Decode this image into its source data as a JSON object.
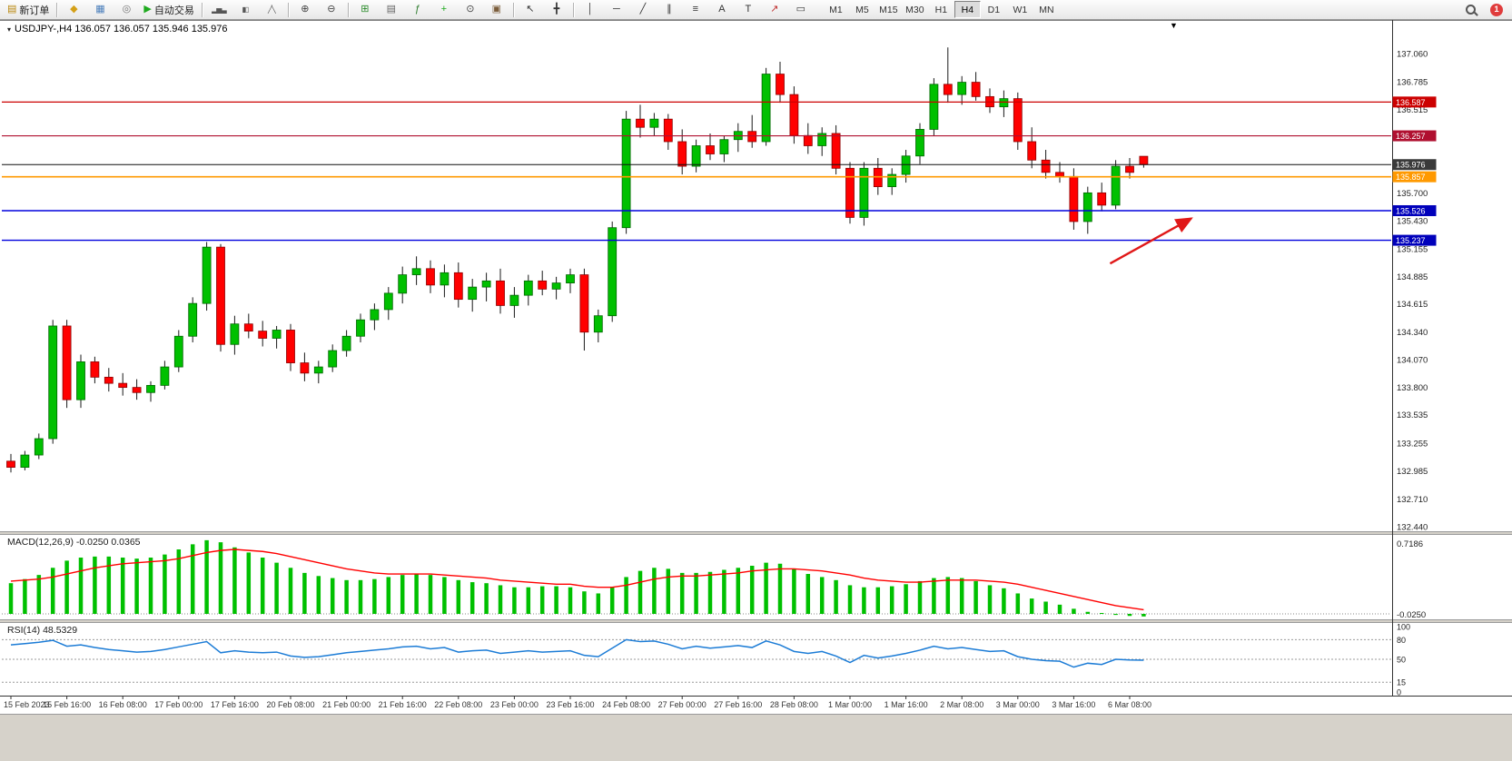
{
  "toolbar": {
    "badge": "1",
    "active_timeframe": "H4",
    "timeframes": [
      "M1",
      "M5",
      "M15",
      "M30",
      "H1",
      "H4",
      "D1",
      "W1",
      "MN"
    ],
    "left_buttons": [
      {
        "name": "new-order-button",
        "icon": "new-order-icon",
        "glyph": "▤",
        "glyph_color": "#b8860b",
        "label": "新订单"
      },
      {
        "sep": true
      },
      {
        "name": "symbols-button",
        "icon": "symbols-icon",
        "glyph": "◆",
        "glyph_color": "#d4a017"
      },
      {
        "name": "market-watch-button",
        "icon": "market-watch-icon",
        "glyph": "▦",
        "glyph_color": "#4a7ebb"
      },
      {
        "name": "signals-button",
        "icon": "signals-icon",
        "glyph": "◎",
        "glyph_color": "#777777"
      },
      {
        "name": "auto-trading-button",
        "icon": "play-icon",
        "glyph": "▶",
        "glyph_color": "#1faa1f",
        "label": "自动交易"
      },
      {
        "sep": true
      },
      {
        "name": "bar-chart-button",
        "icon": "bar-chart-icon",
        "glyph": "▂▅▃",
        "glyph_color": "#555555",
        "small": true
      },
      {
        "name": "candlestick-chart-button",
        "icon": "candlestick-icon",
        "glyph": "▮▯",
        "glyph_color": "#555555",
        "small": true
      },
      {
        "name": "line-chart-button",
        "icon": "line-chart-icon",
        "glyph": "╱╲",
        "glyph_color": "#555555",
        "small": true
      },
      {
        "sep": true
      },
      {
        "name": "zoom-in-button",
        "icon": "zoom-in-icon",
        "glyph": "⊕",
        "glyph_color": "#444444"
      },
      {
        "name": "zoom-out-button",
        "icon": "zoom-out-icon",
        "glyph": "⊖",
        "glyph_color": "#444444"
      },
      {
        "sep": true
      },
      {
        "name": "tile-windows-button",
        "icon": "tile-windows-icon",
        "glyph": "⊞",
        "glyph_color": "#2a8a2a"
      },
      {
        "name": "new-chart-button",
        "icon": "new-chart-icon",
        "glyph": "▤",
        "glyph_color": "#666666"
      },
      {
        "name": "indicators-button",
        "icon": "indicators-icon",
        "glyph": "ƒ",
        "glyph_color": "#2a7a2a"
      },
      {
        "name": "add-indicator-button",
        "icon": "plus-icon",
        "glyph": "+",
        "glyph_color": "#1faa1f"
      },
      {
        "name": "period-button",
        "icon": "clock-icon",
        "glyph": "⊙",
        "glyph_color": "#444444"
      },
      {
        "name": "snapshot-button",
        "icon": "snapshot-icon",
        "glyph": "▣",
        "glyph_color": "#7a5c3a"
      },
      {
        "sep": true
      },
      {
        "name": "cursor-button",
        "icon": "cursor-icon",
        "glyph": "↖",
        "glyph_color": "#333333"
      },
      {
        "name": "crosshair-button",
        "icon": "crosshair-icon",
        "glyph": "╋",
        "glyph_color": "#333333"
      },
      {
        "sep": true
      },
      {
        "name": "vertical-line-button",
        "icon": "vertical-line-icon",
        "glyph": "│",
        "glyph_color": "#333333"
      },
      {
        "name": "horizontal-line-button",
        "icon": "horizontal-line-icon",
        "glyph": "─",
        "glyph_color": "#333333"
      },
      {
        "name": "trendline-button",
        "icon": "trendline-icon",
        "glyph": "╱",
        "glyph_color": "#333333"
      },
      {
        "name": "channel-button",
        "icon": "channel-icon",
        "glyph": "∥",
        "glyph_color": "#333333"
      },
      {
        "name": "fibonacci-button",
        "icon": "fibonacci-icon",
        "glyph": "≡",
        "glyph_color": "#333333"
      },
      {
        "name": "text-button",
        "icon": "text-icon",
        "glyph": "A",
        "glyph_color": "#333333"
      },
      {
        "name": "label-button",
        "icon": "label-icon",
        "glyph": "T",
        "glyph_color": "#333333"
      },
      {
        "name": "arrows-button",
        "icon": "arrow-object-icon",
        "glyph": "↗",
        "glyph_color": "#c03030"
      },
      {
        "name": "shapes-button",
        "icon": "shapes-icon",
        "glyph": "▭",
        "glyph_color": "#333333"
      }
    ]
  },
  "chart_data": [
    {
      "type": "candlestick",
      "symbol": "USDJPY-",
      "timeframe": "H4",
      "title": "USDJPY-,H4  136.057 136.057 135.946 135.976",
      "bull_color": "#00C000",
      "bear_color": "#FF0000",
      "ylim": [
        132.4,
        137.39
      ],
      "y_ticks": [
        "137.060",
        "136.785",
        "136.515",
        "136.240",
        "135.970",
        "135.700",
        "135.430",
        "135.155",
        "134.885",
        "134.615",
        "134.340",
        "134.070",
        "133.800",
        "133.535",
        "133.255",
        "132.985",
        "132.710",
        "132.440"
      ],
      "x_labels": [
        "15 Feb 2023",
        "15 Feb 16:00",
        "16 Feb 08:00",
        "17 Feb 00:00",
        "17 Feb 16:00",
        "20 Feb 08:00",
        "21 Feb 00:00",
        "21 Feb 16:00",
        "22 Feb 08:00",
        "23 Feb 00:00",
        "23 Feb 16:00",
        "24 Feb 08:00",
        "27 Feb 00:00",
        "27 Feb 16:00",
        "28 Feb 08:00",
        "1 Mar 00:00",
        "1 Mar 16:00",
        "2 Mar 08:00",
        "3 Mar 00:00",
        "3 Mar 16:00",
        "6 Mar 08:00"
      ],
      "bars_per_label": 4,
      "ohlc": [
        [
          133.08,
          133.15,
          132.97,
          133.02
        ],
        [
          133.02,
          133.18,
          132.99,
          133.14
        ],
        [
          133.14,
          133.35,
          133.1,
          133.3
        ],
        [
          133.3,
          134.46,
          133.25,
          134.4
        ],
        [
          134.4,
          134.46,
          133.6,
          133.68
        ],
        [
          133.68,
          134.12,
          133.6,
          134.05
        ],
        [
          134.05,
          134.1,
          133.84,
          133.9
        ],
        [
          133.9,
          133.99,
          133.76,
          133.84
        ],
        [
          133.84,
          133.94,
          133.72,
          133.8
        ],
        [
          133.8,
          133.88,
          133.68,
          133.75
        ],
        [
          133.75,
          133.86,
          133.66,
          133.82
        ],
        [
          133.82,
          134.06,
          133.78,
          134.0
        ],
        [
          134.0,
          134.36,
          133.95,
          134.3
        ],
        [
          134.3,
          134.68,
          134.24,
          134.62
        ],
        [
          134.62,
          135.22,
          134.55,
          135.17
        ],
        [
          135.17,
          135.2,
          134.15,
          134.22
        ],
        [
          134.22,
          134.5,
          134.12,
          134.42
        ],
        [
          134.42,
          134.52,
          134.28,
          134.35
        ],
        [
          134.35,
          134.45,
          134.2,
          134.28
        ],
        [
          134.28,
          134.4,
          134.18,
          134.36
        ],
        [
          134.36,
          134.42,
          133.96,
          134.04
        ],
        [
          134.04,
          134.14,
          133.86,
          133.94
        ],
        [
          133.94,
          134.06,
          133.84,
          134.0
        ],
        [
          134.0,
          134.22,
          133.95,
          134.16
        ],
        [
          134.16,
          134.36,
          134.1,
          134.3
        ],
        [
          134.3,
          134.52,
          134.24,
          134.46
        ],
        [
          134.46,
          134.62,
          134.36,
          134.56
        ],
        [
          134.56,
          134.78,
          134.46,
          134.72
        ],
        [
          134.72,
          134.98,
          134.62,
          134.9
        ],
        [
          134.9,
          135.08,
          134.8,
          134.96
        ],
        [
          134.96,
          135.04,
          134.72,
          134.8
        ],
        [
          134.8,
          135.0,
          134.68,
          134.92
        ],
        [
          134.92,
          135.02,
          134.58,
          134.66
        ],
        [
          134.66,
          134.86,
          134.54,
          134.78
        ],
        [
          134.78,
          134.92,
          134.64,
          134.84
        ],
        [
          134.84,
          134.96,
          134.52,
          134.6
        ],
        [
          134.6,
          134.78,
          134.48,
          134.7
        ],
        [
          134.7,
          134.9,
          134.6,
          134.84
        ],
        [
          134.84,
          134.94,
          134.7,
          134.76
        ],
        [
          134.76,
          134.88,
          134.66,
          134.82
        ],
        [
          134.82,
          134.96,
          134.72,
          134.9
        ],
        [
          134.9,
          134.96,
          134.16,
          134.34
        ],
        [
          134.34,
          134.56,
          134.24,
          134.5
        ],
        [
          134.5,
          135.42,
          134.44,
          135.36
        ],
        [
          135.36,
          136.5,
          135.3,
          136.42
        ],
        [
          136.42,
          136.56,
          136.24,
          136.34
        ],
        [
          136.34,
          136.48,
          136.26,
          136.42
        ],
        [
          136.42,
          136.47,
          136.12,
          136.2
        ],
        [
          136.2,
          136.32,
          135.88,
          135.96
        ],
        [
          135.96,
          136.22,
          135.9,
          136.16
        ],
        [
          136.16,
          136.28,
          136.02,
          136.08
        ],
        [
          136.08,
          136.26,
          136.0,
          136.22
        ],
        [
          136.22,
          136.38,
          136.1,
          136.3
        ],
        [
          136.3,
          136.46,
          136.14,
          136.2
        ],
        [
          136.2,
          136.92,
          136.16,
          136.86
        ],
        [
          136.86,
          136.98,
          136.58,
          136.66
        ],
        [
          136.66,
          136.74,
          136.18,
          136.26
        ],
        [
          136.26,
          136.38,
          136.08,
          136.16
        ],
        [
          136.16,
          136.34,
          136.06,
          136.28
        ],
        [
          136.28,
          136.36,
          135.88,
          135.94
        ],
        [
          135.94,
          136.0,
          135.4,
          135.46
        ],
        [
          135.46,
          136.0,
          135.38,
          135.94
        ],
        [
          135.94,
          136.04,
          135.68,
          135.76
        ],
        [
          135.76,
          135.94,
          135.68,
          135.88
        ],
        [
          135.88,
          136.12,
          135.8,
          136.06
        ],
        [
          136.06,
          136.38,
          135.98,
          136.32
        ],
        [
          136.32,
          136.82,
          136.26,
          136.76
        ],
        [
          136.76,
          137.12,
          136.58,
          136.66
        ],
        [
          136.66,
          136.84,
          136.56,
          136.78
        ],
        [
          136.78,
          136.88,
          136.6,
          136.64
        ],
        [
          136.64,
          136.72,
          136.48,
          136.54
        ],
        [
          136.54,
          136.7,
          136.44,
          136.62
        ],
        [
          136.62,
          136.68,
          136.12,
          136.2
        ],
        [
          136.2,
          136.34,
          135.94,
          136.02
        ],
        [
          136.02,
          136.12,
          135.84,
          135.9
        ],
        [
          135.9,
          136.0,
          135.8,
          135.86
        ],
        [
          135.86,
          135.94,
          135.34,
          135.42
        ],
        [
          135.42,
          135.76,
          135.3,
          135.7
        ],
        [
          135.7,
          135.8,
          135.52,
          135.58
        ],
        [
          135.58,
          136.02,
          135.54,
          135.96
        ],
        [
          135.96,
          136.04,
          135.84,
          135.9
        ],
        [
          136.057,
          136.057,
          135.946,
          135.976
        ]
      ],
      "hlines": [
        {
          "value": 136.587,
          "label": "136.587",
          "color": "#cc0000",
          "label_bg": "#cc0000",
          "width": 1.2
        },
        {
          "value": 136.257,
          "label": "136.257",
          "color": "#b01030",
          "label_bg": "#b01030",
          "width": 1.2
        },
        {
          "value": 135.976,
          "label": "135.976",
          "color": "#111111",
          "label_bg": "#3a3a3a",
          "width": 1
        },
        {
          "value": 135.857,
          "label": "135.857",
          "color": "#ff9900",
          "label_bg": "#ff9900",
          "width": 1.6
        },
        {
          "value": 135.526,
          "label": "135.526",
          "color": "#0000dd",
          "label_bg": "#0000bb",
          "width": 1.4
        },
        {
          "value": 135.237,
          "label": "135.237",
          "color": "#0000dd",
          "label_bg": "#0000bb",
          "width": 1.4
        }
      ],
      "arrow_annotation": {
        "from_bar": 78.6,
        "from_price": 135.01,
        "to_bar": 84.4,
        "to_price": 135.45,
        "color": "#e01818"
      }
    },
    {
      "type": "macd-histogram",
      "label": "MACD(12,26,9) -0.0250 0.0365",
      "axis_top": "0.7186",
      "axis_bottom": "-0.0250",
      "histogram_color": "#00C000",
      "signal_color": "#FF0000",
      "histogram": [
        0.3,
        0.34,
        0.38,
        0.45,
        0.52,
        0.55,
        0.56,
        0.56,
        0.55,
        0.54,
        0.55,
        0.58,
        0.63,
        0.68,
        0.72,
        0.7,
        0.65,
        0.6,
        0.55,
        0.5,
        0.45,
        0.4,
        0.37,
        0.35,
        0.33,
        0.33,
        0.34,
        0.36,
        0.38,
        0.39,
        0.38,
        0.36,
        0.33,
        0.31,
        0.3,
        0.28,
        0.26,
        0.26,
        0.27,
        0.27,
        0.26,
        0.22,
        0.2,
        0.26,
        0.36,
        0.42,
        0.45,
        0.44,
        0.4,
        0.4,
        0.41,
        0.43,
        0.45,
        0.47,
        0.5,
        0.49,
        0.44,
        0.39,
        0.36,
        0.33,
        0.28,
        0.26,
        0.26,
        0.27,
        0.29,
        0.32,
        0.35,
        0.36,
        0.35,
        0.32,
        0.28,
        0.25,
        0.2,
        0.15,
        0.12,
        0.09,
        0.05,
        0.02,
        0.0,
        -0.01,
        -0.02,
        -0.025
      ],
      "signal": [
        0.32,
        0.33,
        0.34,
        0.36,
        0.39,
        0.42,
        0.45,
        0.47,
        0.49,
        0.5,
        0.51,
        0.52,
        0.54,
        0.57,
        0.6,
        0.62,
        0.63,
        0.62,
        0.61,
        0.59,
        0.56,
        0.53,
        0.5,
        0.47,
        0.44,
        0.42,
        0.4,
        0.39,
        0.39,
        0.39,
        0.39,
        0.38,
        0.37,
        0.36,
        0.35,
        0.33,
        0.32,
        0.31,
        0.3,
        0.29,
        0.29,
        0.27,
        0.26,
        0.26,
        0.28,
        0.31,
        0.34,
        0.36,
        0.37,
        0.37,
        0.38,
        0.39,
        0.4,
        0.42,
        0.43,
        0.44,
        0.44,
        0.43,
        0.42,
        0.4,
        0.38,
        0.35,
        0.33,
        0.32,
        0.31,
        0.31,
        0.32,
        0.33,
        0.33,
        0.33,
        0.32,
        0.31,
        0.29,
        0.26,
        0.23,
        0.2,
        0.17,
        0.14,
        0.11,
        0.08,
        0.06,
        0.04
      ]
    },
    {
      "type": "line",
      "label": "RSI(14) 48.5329",
      "line_color": "#1C7CD6",
      "ylim": [
        0,
        100
      ],
      "levels": [
        80,
        50,
        15
      ],
      "axis_labels": [
        "100",
        "80",
        "50",
        "15",
        "0"
      ],
      "values": [
        72,
        74,
        76,
        79,
        70,
        72,
        68,
        65,
        63,
        61,
        62,
        65,
        69,
        73,
        77,
        60,
        63,
        61,
        60,
        61,
        55,
        53,
        54,
        57,
        60,
        62,
        64,
        66,
        69,
        70,
        66,
        68,
        61,
        63,
        64,
        59,
        61,
        63,
        61,
        62,
        63,
        56,
        54,
        67,
        80,
        77,
        78,
        73,
        66,
        70,
        67,
        69,
        71,
        68,
        78,
        72,
        62,
        59,
        62,
        55,
        45,
        56,
        52,
        55,
        59,
        64,
        70,
        66,
        68,
        65,
        62,
        63,
        54,
        50,
        48,
        47,
        38,
        44,
        42,
        50,
        49,
        48.53
      ]
    }
  ]
}
